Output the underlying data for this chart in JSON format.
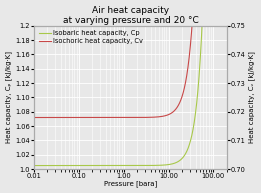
{
  "title": "Air heat capacity\nat varying pressure and 20 °C",
  "xlabel": "Pressure [bara]",
  "ylabel_left": "Heat capacity, Cₚ [kJ/kg·K]",
  "ylabel_right": "Heat capacity, Cᵥ [kJ/kg·K]",
  "legend_cp": "Isobaric heat capacity, Cp",
  "legend_cv": "Isochoric heat capacity, Cv",
  "color_cp": "#a8c84a",
  "color_cv": "#c84848",
  "ylim_left": [
    1.0,
    1.2
  ],
  "ylim_right": [
    0.7,
    0.75
  ],
  "bg_color": "#e8e8e8",
  "plot_bg": "#e8e8e8",
  "grid_color": "#ffffff",
  "title_fontsize": 6.5,
  "label_fontsize": 5.0,
  "tick_fontsize": 4.8,
  "legend_fontsize": 4.8
}
